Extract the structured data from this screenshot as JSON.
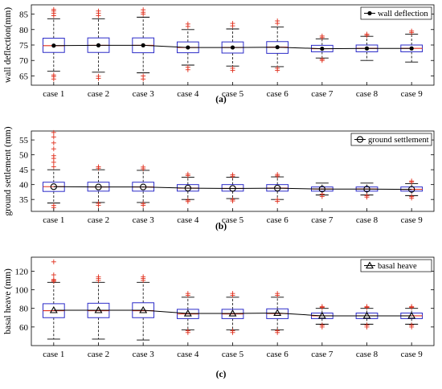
{
  "chart_data": [
    {
      "type": "box",
      "panel_label": "(a)",
      "ylabel": "wall deflection(mm)",
      "categories": [
        "case 1",
        "case 2",
        "case 3",
        "case 4",
        "case 5",
        "case 6",
        "case 7",
        "case 8",
        "case 9"
      ],
      "ylim": [
        62,
        88
      ],
      "yticks": [
        65,
        70,
        75,
        80,
        85
      ],
      "grid": false,
      "legend": {
        "label": "wall deflection",
        "marker": "dot",
        "placement": "top-right"
      },
      "mean_series": {
        "name": "wall deflection",
        "marker": "dot",
        "values": [
          74.8,
          74.9,
          74.9,
          74.2,
          74.2,
          74.3,
          73.8,
          73.9,
          73.9
        ]
      },
      "boxes": [
        {
          "whisker_low": 66.5,
          "q1": 72.6,
          "median": 74.8,
          "q3": 77.2,
          "whisker_high": 83.5,
          "outliers": [
            64.0,
            64.8,
            65.3,
            84.5,
            85.3,
            86.0,
            86.5
          ]
        },
        {
          "whisker_low": 66.2,
          "q1": 72.6,
          "median": 74.9,
          "q3": 77.3,
          "whisker_high": 83.5,
          "outliers": [
            64.2,
            64.9,
            84.5,
            85.3,
            86.0
          ]
        },
        {
          "whisker_low": 66.0,
          "q1": 72.5,
          "median": 74.9,
          "q3": 77.3,
          "whisker_high": 84.0,
          "outliers": [
            64.0,
            65.0,
            85.0,
            85.6,
            86.4
          ]
        },
        {
          "whisker_low": 68.5,
          "q1": 72.5,
          "median": 74.2,
          "q3": 76.0,
          "whisker_high": 80.0,
          "outliers": [
            67.0,
            67.8,
            81.0,
            81.8
          ]
        },
        {
          "whisker_low": 68.2,
          "q1": 72.4,
          "median": 74.2,
          "q3": 76.0,
          "whisker_high": 80.2,
          "outliers": [
            66.8,
            67.5,
            81.2,
            82.0
          ]
        },
        {
          "whisker_low": 68.0,
          "q1": 72.3,
          "median": 74.3,
          "q3": 76.1,
          "whisker_high": 80.8,
          "outliers": [
            66.8,
            67.5,
            82.0,
            82.8
          ]
        },
        {
          "whisker_low": 70.8,
          "q1": 72.8,
          "median": 73.8,
          "q3": 74.9,
          "whisker_high": 77.0,
          "outliers": [
            70.0,
            70.4,
            77.4,
            77.9
          ]
        },
        {
          "whisker_low": 70.0,
          "q1": 72.8,
          "median": 73.9,
          "q3": 75.0,
          "whisker_high": 77.8,
          "outliers": [
            78.1,
            78.5
          ]
        },
        {
          "whisker_low": 69.5,
          "q1": 72.8,
          "median": 73.9,
          "q3": 75.0,
          "whisker_high": 78.5,
          "outliers": [
            79.0,
            79.5
          ]
        }
      ]
    },
    {
      "type": "box",
      "panel_label": "(b)",
      "ylabel": "ground settlement (mm)",
      "categories": [
        "case 1",
        "case 2",
        "case 3",
        "case 4",
        "case 5",
        "case 6",
        "case 7",
        "case 8",
        "case 9"
      ],
      "ylim": [
        31,
        58
      ],
      "yticks": [
        35,
        40,
        45,
        50,
        55
      ],
      "grid": false,
      "legend": {
        "label": "ground settlement",
        "marker": "circle",
        "placement": "top-right"
      },
      "mean_series": {
        "name": "ground settlement",
        "marker": "circle",
        "values": [
          39.3,
          39.2,
          39.2,
          38.8,
          38.7,
          38.8,
          38.5,
          38.5,
          38.4
        ]
      },
      "boxes": [
        {
          "whisker_low": 33.8,
          "q1": 37.7,
          "median": 39.3,
          "q3": 40.8,
          "whisker_high": 45.0,
          "outliers": [
            32.3,
            33.0,
            46.0,
            47.5,
            48.8,
            49.7,
            52.0,
            54.0,
            56.0,
            57.5
          ]
        },
        {
          "whisker_low": 34.0,
          "q1": 37.8,
          "median": 39.2,
          "q3": 40.8,
          "whisker_high": 45.0,
          "outliers": [
            33.0,
            33.7,
            45.5,
            46.0
          ]
        },
        {
          "whisker_low": 34.0,
          "q1": 37.8,
          "median": 39.2,
          "q3": 40.8,
          "whisker_high": 44.8,
          "outliers": [
            33.0,
            33.6,
            45.3,
            45.9
          ]
        },
        {
          "whisker_low": 35.0,
          "q1": 37.8,
          "median": 38.8,
          "q3": 40.0,
          "whisker_high": 42.5,
          "outliers": [
            34.3,
            34.8,
            43.0,
            43.5
          ]
        },
        {
          "whisker_low": 35.3,
          "q1": 37.8,
          "median": 38.7,
          "q3": 40.0,
          "whisker_high": 42.5,
          "outliers": [
            34.5,
            35.0,
            42.8,
            43.3
          ]
        },
        {
          "whisker_low": 35.0,
          "q1": 37.8,
          "median": 38.8,
          "q3": 40.0,
          "whisker_high": 42.6,
          "outliers": [
            34.4,
            35.0,
            42.9,
            43.4
          ]
        },
        {
          "whisker_low": 36.5,
          "q1": 37.8,
          "median": 38.5,
          "q3": 39.2,
          "whisker_high": 40.5,
          "outliers": [
            36.0,
            36.8
          ]
        },
        {
          "whisker_low": 36.5,
          "q1": 37.8,
          "median": 38.5,
          "q3": 39.2,
          "whisker_high": 40.5,
          "outliers": [
            35.8,
            36.3
          ]
        },
        {
          "whisker_low": 36.3,
          "q1": 37.8,
          "median": 38.4,
          "q3": 39.2,
          "whisker_high": 40.3,
          "outliers": [
            35.5,
            36.0,
            40.8,
            41.2
          ]
        }
      ]
    },
    {
      "type": "box",
      "panel_label": "(c)",
      "ylabel": "basal heave (mm)",
      "categories": [
        "case 1",
        "case 2",
        "case 3",
        "case 4",
        "case 5",
        "case 6",
        "case 7",
        "case 8",
        "case 9"
      ],
      "ylim": [
        40,
        135
      ],
      "yticks": [
        60,
        80,
        100,
        120
      ],
      "grid": false,
      "legend": {
        "label": "basal heave",
        "marker": "triangle",
        "placement": "top-right"
      },
      "mean_series": {
        "name": "basal heave",
        "marker": "triangle",
        "values": [
          78,
          78,
          78,
          74.5,
          74.5,
          75,
          72,
          72,
          72
        ]
      },
      "boxes": [
        {
          "whisker_low": 47,
          "q1": 70,
          "median": 77.5,
          "q3": 85,
          "whisker_high": 108,
          "outliers": [
            109,
            110,
            111,
            116,
            130
          ]
        },
        {
          "whisker_low": 47,
          "q1": 70,
          "median": 77.5,
          "q3": 85.5,
          "whisker_high": 108,
          "outliers": [
            110,
            112,
            114
          ]
        },
        {
          "whisker_low": 46,
          "q1": 70,
          "median": 77.5,
          "q3": 86,
          "whisker_high": 108,
          "outliers": [
            110,
            112,
            114
          ]
        },
        {
          "whisker_low": 57,
          "q1": 69,
          "median": 74,
          "q3": 79,
          "whisker_high": 92,
          "outliers": [
            54,
            56,
            94,
            96
          ]
        },
        {
          "whisker_low": 57,
          "q1": 69,
          "median": 74,
          "q3": 79,
          "whisker_high": 92,
          "outliers": [
            54,
            56,
            94,
            96
          ]
        },
        {
          "whisker_low": 57,
          "q1": 69,
          "median": 74.5,
          "q3": 79.5,
          "whisker_high": 92,
          "outliers": [
            54,
            56,
            94,
            96
          ]
        },
        {
          "whisker_low": 63,
          "q1": 69,
          "median": 72,
          "q3": 75,
          "whisker_high": 80,
          "outliers": [
            60,
            62,
            81,
            82
          ]
        },
        {
          "whisker_low": 63,
          "q1": 69,
          "median": 72,
          "q3": 75,
          "whisker_high": 80,
          "outliers": [
            60,
            62,
            81,
            82
          ]
        },
        {
          "whisker_low": 63,
          "q1": 69,
          "median": 72,
          "q3": 75,
          "whisker_high": 80,
          "outliers": [
            60,
            62,
            81,
            82
          ]
        }
      ]
    }
  ],
  "colors": {
    "box": "#2b2bc8",
    "median": "#e0301e",
    "outlier": "#e0301e",
    "whisker": "#000000",
    "mean_line": "#000000"
  }
}
